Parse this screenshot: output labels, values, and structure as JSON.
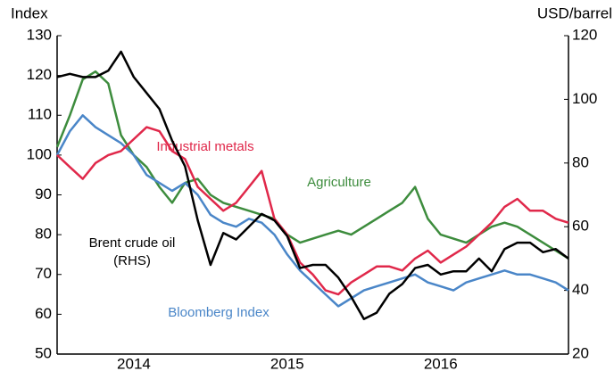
{
  "chart_data": {
    "type": "line",
    "y_label": "Index",
    "y2_label": "USD/barrel",
    "categories": [
      null,
      null,
      null,
      null,
      null,
      null,
      "2014",
      null,
      null,
      null,
      null,
      null,
      null,
      null,
      null,
      null,
      null,
      null,
      "2015",
      null,
      null,
      null,
      null,
      null,
      null,
      null,
      null,
      null,
      null,
      null,
      "2016",
      null,
      null,
      null,
      null,
      null,
      null,
      null,
      null,
      null,
      null
    ],
    "ylim": [
      50,
      130
    ],
    "yticks": [
      50,
      60,
      70,
      80,
      90,
      100,
      110,
      120,
      130
    ],
    "y2lim": [
      20,
      120
    ],
    "y2ticks": [
      20,
      40,
      60,
      80,
      100,
      120
    ],
    "series": [
      {
        "name": "Agriculture",
        "color": "#3d8c3d",
        "values": [
          102,
          110,
          119,
          121,
          118,
          105,
          100,
          97,
          92,
          88,
          93,
          94,
          90,
          88,
          87,
          86,
          85,
          84,
          80,
          78,
          79,
          80,
          81,
          80,
          82,
          84,
          86,
          88,
          92,
          84,
          80,
          79,
          78,
          80,
          82,
          83,
          82,
          80,
          78,
          76,
          74
        ]
      },
      {
        "name": "Bloomberg Index",
        "color": "#4a86c8",
        "values": [
          100,
          106,
          110,
          107,
          105,
          103,
          100,
          95,
          93,
          91,
          93,
          90,
          85,
          83,
          82,
          84,
          83,
          80,
          75,
          71,
          68,
          65,
          62,
          64,
          66,
          67,
          68,
          69,
          70,
          68,
          67,
          66,
          68,
          69,
          70,
          71,
          70,
          70,
          69,
          68,
          66
        ]
      },
      {
        "name": "Industrial metals",
        "color": "#e0284a",
        "values": [
          100,
          97,
          94,
          98,
          100,
          101,
          104,
          107,
          106,
          101,
          99,
          92,
          89,
          86,
          88,
          92,
          96,
          84,
          80,
          73,
          70,
          66,
          65,
          68,
          70,
          72,
          72,
          71,
          74,
          76,
          73,
          75,
          77,
          80,
          83,
          87,
          89,
          86,
          86,
          84,
          83
        ]
      },
      {
        "name": "Brent crude oil",
        "name_note": "(RHS)",
        "color": "#000000",
        "axis": "y2",
        "values": [
          107,
          108,
          107,
          107,
          109,
          115,
          107,
          102,
          97,
          87,
          79,
          62,
          48,
          58,
          56,
          60,
          64,
          62,
          57,
          47,
          48,
          48,
          44,
          38,
          31,
          33,
          39,
          42,
          47,
          48,
          45,
          46,
          46,
          50,
          46,
          53,
          55,
          55,
          52,
          53,
          50
        ]
      }
    ]
  }
}
